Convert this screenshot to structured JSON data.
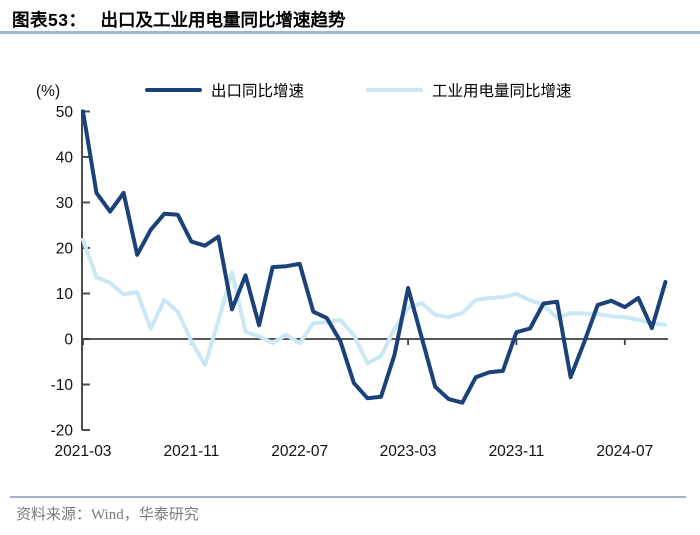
{
  "header": {
    "chart_label": "图表53：",
    "title": "出口及工业用电量同比增速趋势"
  },
  "axis_unit_label": "(%)",
  "legend": {
    "items": [
      {
        "label": "出口同比增速",
        "color": "#1a4178"
      },
      {
        "label": "工业用电量同比增速",
        "color": "#c9e7f5"
      }
    ]
  },
  "footer": {
    "source_text": "资料来源：Wind，华泰研究"
  },
  "colors": {
    "navy": "#1a4178",
    "light_blue": "#c9e7f5",
    "axis": "#4d4d4d",
    "zero_line": "#404040",
    "title_rule": "#9db9ce",
    "footer_rule": "#9fb2c6",
    "footer_text": "#7b7b7b"
  },
  "chart_data": {
    "type": "line",
    "title": "出口及工业用电量同比增速趋势",
    "unit": "%",
    "grid": false,
    "legend_position": "top",
    "ylim": [
      -20,
      50
    ],
    "y_ticks": [
      50,
      40,
      30,
      20,
      10,
      0,
      -10,
      -20
    ],
    "x_tick_labels": [
      "2021-03",
      "2021-11",
      "2022-07",
      "2023-03",
      "2023-11",
      "2024-07"
    ],
    "x_tick_indices": [
      0,
      8,
      16,
      24,
      32,
      40
    ],
    "x": [
      "2021-03",
      "2021-04",
      "2021-05",
      "2021-06",
      "2021-07",
      "2021-08",
      "2021-09",
      "2021-10",
      "2021-11",
      "2021-12",
      "2022-01",
      "2022-02",
      "2022-03",
      "2022-04",
      "2022-05",
      "2022-06",
      "2022-07",
      "2022-08",
      "2022-09",
      "2022-10",
      "2022-11",
      "2022-12",
      "2023-01",
      "2023-02",
      "2023-03",
      "2023-04",
      "2023-05",
      "2023-06",
      "2023-07",
      "2023-08",
      "2023-09",
      "2023-10",
      "2023-11",
      "2023-12",
      "2024-01",
      "2024-02",
      "2024-03",
      "2024-04",
      "2024-05",
      "2024-06",
      "2024-07",
      "2024-08",
      "2024-09",
      "2024-10"
    ],
    "series": [
      {
        "name": "出口同比增速",
        "color": "#1a4178",
        "values": [
          50,
          32.1,
          28,
          32.1,
          18.5,
          24,
          27.5,
          27.3,
          21.4,
          20.5,
          22.5,
          6.5,
          14,
          3,
          15.8,
          16,
          16.5,
          6,
          4.6,
          -0.5,
          -9.7,
          -13,
          -12.7,
          -3.5,
          11.2,
          0.4,
          -10.5,
          -13.2,
          -14,
          -8.4,
          -7.3,
          -7,
          1.5,
          2.3,
          7.8,
          8.2,
          -8.4,
          -0.7,
          7.5,
          8.4,
          7,
          9,
          2.4,
          12.5
        ]
      },
      {
        "name": "工业用电量同比增速",
        "color": "#c9e7f5",
        "values": [
          21.8,
          13.6,
          12.3,
          9.8,
          10.3,
          2.2,
          8.6,
          6,
          -0.5,
          -5.7,
          4,
          14.7,
          1.6,
          0.6,
          -0.9,
          0.9,
          -0.9,
          3.5,
          3.7,
          4.2,
          0.8,
          -5.3,
          -3.8,
          2.3,
          6.8,
          7.9,
          5.3,
          4.8,
          5.7,
          8.6,
          9,
          9.2,
          9.9,
          8.5,
          7.5,
          4.6,
          5.7,
          5.6,
          5.5,
          5,
          4.8,
          4.2,
          3.5,
          3.1
        ]
      }
    ]
  }
}
